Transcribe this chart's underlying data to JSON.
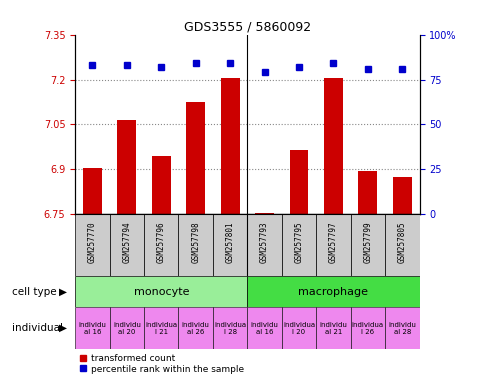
{
  "title": "GDS3555 / 5860092",
  "samples": [
    "GSM257770",
    "GSM257794",
    "GSM257796",
    "GSM257798",
    "GSM257801",
    "GSM257793",
    "GSM257795",
    "GSM257797",
    "GSM257799",
    "GSM257805"
  ],
  "bar_values": [
    6.905,
    7.065,
    6.945,
    7.125,
    7.205,
    6.755,
    6.965,
    7.205,
    6.895,
    6.875
  ],
  "dot_values": [
    83,
    83,
    82,
    84,
    84,
    79,
    82,
    84,
    81,
    81
  ],
  "ylim": [
    6.75,
    7.35
  ],
  "yticks": [
    6.75,
    6.9,
    7.05,
    7.2,
    7.35
  ],
  "right_yticks": [
    0,
    25,
    50,
    75,
    100
  ],
  "right_ylim": [
    0,
    100
  ],
  "bar_color": "#cc0000",
  "dot_color": "#0000cc",
  "cell_types": [
    {
      "label": "monocyte",
      "start": 0,
      "end": 5,
      "color": "#99ee99"
    },
    {
      "label": "macrophage",
      "start": 5,
      "end": 10,
      "color": "#44dd44"
    }
  ],
  "indiv_labels": [
    "individu\nal 16",
    "individu\nal 20",
    "individua\nl 21",
    "individu\nal 26",
    "individua\nl 28",
    "individu\nal 16",
    "individua\nl 20",
    "individu\nal 21",
    "individua\nl 26",
    "individu\nal 28"
  ],
  "indiv_color": "#ee88ee",
  "legend_bar_label": "transformed count",
  "legend_dot_label": "percentile rank within the sample",
  "label_cell_type": "cell type",
  "label_individual": "individual",
  "tick_color_left": "#cc0000",
  "tick_color_right": "#0000cc",
  "bg_color": "#ffffff",
  "sample_box_color": "#cccccc",
  "bar_width": 0.55
}
